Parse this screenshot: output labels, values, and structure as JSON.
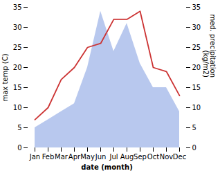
{
  "chart_data": {
    "type": "line",
    "categories": [
      "Jan",
      "Feb",
      "Mar",
      "Apr",
      "May",
      "Jun",
      "Jul",
      "Aug",
      "Sep",
      "Oct",
      "Nov",
      "Dec"
    ],
    "xlabel": "date (month)",
    "ylabel": "max temp (C)",
    "y2label": "med. precipitation\n(kg/m2)",
    "ylim": [
      0,
      35
    ],
    "yticks": [
      0,
      5,
      10,
      15,
      20,
      25,
      30,
      35
    ],
    "y2lim": [
      0,
      35
    ],
    "y2ticks": [
      0,
      5,
      10,
      15,
      20,
      25,
      30,
      35
    ],
    "series": [
      {
        "type": "area",
        "axis": "y2",
        "color": "#b8c8ee",
        "values": [
          5,
          7,
          9,
          11,
          20,
          34,
          24,
          31,
          21,
          15,
          15,
          9
        ]
      },
      {
        "type": "line",
        "color": "#cc3333",
        "values": [
          7,
          10,
          17,
          20,
          25,
          26,
          32,
          32,
          34,
          20,
          19,
          13
        ]
      }
    ]
  }
}
